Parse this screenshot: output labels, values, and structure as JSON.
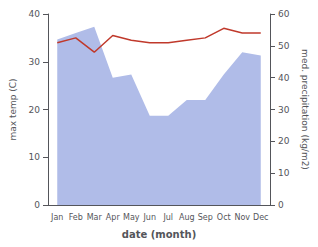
{
  "chart_data": {
    "type": "line",
    "xlabel": "date (month)",
    "ylabel": "max temp (C)",
    "y2label": "med. precipitation (kg/m2)",
    "categories": [
      "Jan",
      "Feb",
      "Mar",
      "Apr",
      "May",
      "Jun",
      "Jul",
      "Aug",
      "Sep",
      "Oct",
      "Nov",
      "Dec"
    ],
    "series": [
      {
        "type": "area",
        "axis": "y2",
        "color": "#b0bce8",
        "values": [
          52,
          54,
          56,
          40,
          41,
          28,
          28,
          33,
          33,
          41,
          48,
          47
        ]
      },
      {
        "type": "line",
        "color": "#c0392b",
        "values": [
          34,
          35,
          32,
          35.5,
          34.5,
          34,
          34,
          34.5,
          35,
          37,
          36,
          36
        ]
      }
    ],
    "ylim": [
      0,
      40
    ],
    "yticks": [
      0,
      10,
      20,
      30,
      40
    ],
    "y2lim": [
      0,
      60
    ],
    "y2ticks": [
      0,
      10,
      20,
      30,
      40,
      50,
      60
    ],
    "grid": false
  }
}
